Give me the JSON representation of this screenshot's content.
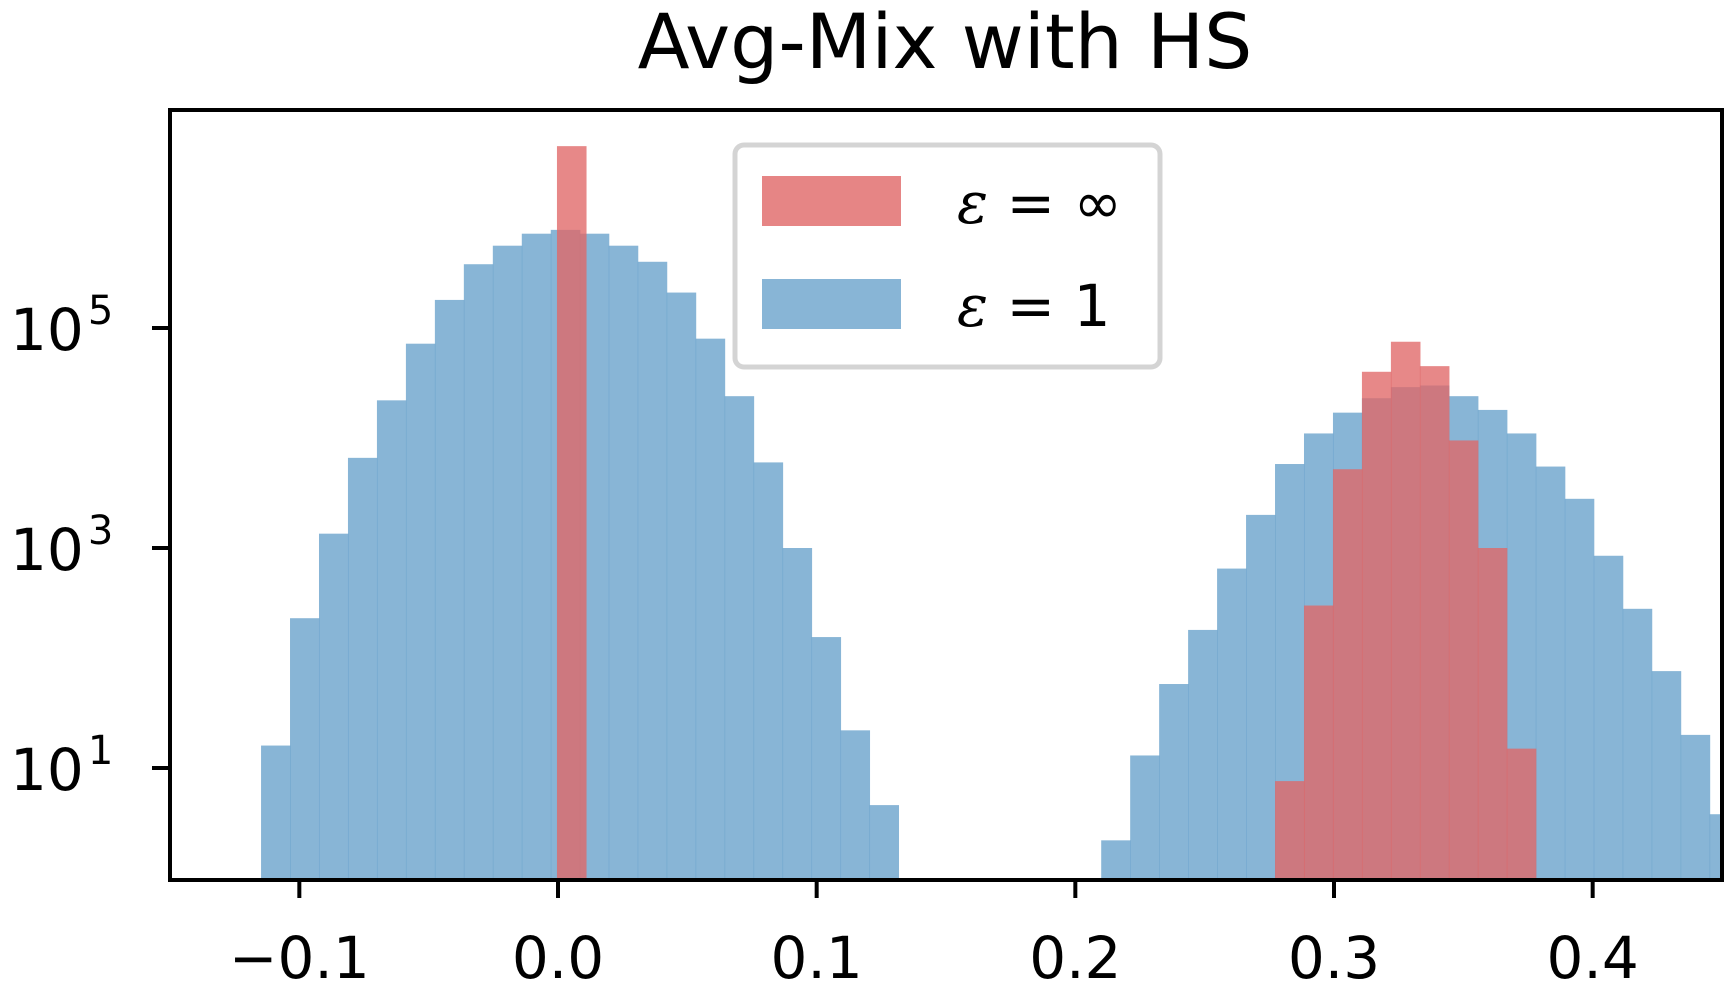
{
  "chart_data": {
    "type": "bar",
    "title": "Avg-Mix with HS",
    "xlabel": "",
    "ylabel": "",
    "xlim": [
      -0.15,
      0.45
    ],
    "ylim_log10": [
      0,
      5
    ],
    "yscale": "log",
    "grid": false,
    "legend_position": "top-center",
    "bin_width": 0.0112,
    "x_ticks": [
      {
        "value": -0.1,
        "label": "−0.1"
      },
      {
        "value": 0.0,
        "label": "0.0"
      },
      {
        "value": 0.1,
        "label": "0.1"
      },
      {
        "value": 0.2,
        "label": "0.2"
      },
      {
        "value": 0.3,
        "label": "0.3"
      },
      {
        "value": 0.4,
        "label": "0.4"
      }
    ],
    "y_ticks": [
      {
        "value": 10,
        "base": "10",
        "exp": "1"
      },
      {
        "value": 1000,
        "base": "10",
        "exp": "3"
      },
      {
        "value": 100000,
        "base": "10",
        "exp": "5"
      }
    ],
    "series": [
      {
        "name_prefix": "ε",
        "name_suffix": " = 1",
        "color": "#6aa2cc",
        "bars": [
          {
            "x0": -0.1148,
            "x1": -0.1036,
            "y": 16
          },
          {
            "x0": -0.1036,
            "x1": -0.0924,
            "y": 230
          },
          {
            "x0": -0.0924,
            "x1": -0.0812,
            "y": 1350
          },
          {
            "x0": -0.0812,
            "x1": -0.07,
            "y": 6600
          },
          {
            "x0": -0.07,
            "x1": -0.0588,
            "y": 22000
          },
          {
            "x0": -0.0588,
            "x1": -0.0476,
            "y": 72000
          },
          {
            "x0": -0.0476,
            "x1": -0.0364,
            "y": 180000
          },
          {
            "x0": -0.0364,
            "x1": -0.0252,
            "y": 380000
          },
          {
            "x0": -0.0252,
            "x1": -0.014,
            "y": 560000
          },
          {
            "x0": -0.014,
            "x1": -0.0028,
            "y": 720000
          },
          {
            "x0": -0.0028,
            "x1": 0.0084,
            "y": 780000
          },
          {
            "x0": 0.0084,
            "x1": 0.0196,
            "y": 720000
          },
          {
            "x0": 0.0196,
            "x1": 0.0308,
            "y": 560000
          },
          {
            "x0": 0.0308,
            "x1": 0.042,
            "y": 400000
          },
          {
            "x0": 0.042,
            "x1": 0.0532,
            "y": 210000
          },
          {
            "x0": 0.0532,
            "x1": 0.0644,
            "y": 80000
          },
          {
            "x0": 0.0644,
            "x1": 0.0756,
            "y": 24000
          },
          {
            "x0": 0.0756,
            "x1": 0.0868,
            "y": 6000
          },
          {
            "x0": 0.0868,
            "x1": 0.098,
            "y": 1000
          },
          {
            "x0": 0.098,
            "x1": 0.1092,
            "y": 155
          },
          {
            "x0": 0.1092,
            "x1": 0.1204,
            "y": 22
          },
          {
            "x0": 0.1204,
            "x1": 0.1316,
            "y": 4.6
          },
          {
            "x0": 0.21,
            "x1": 0.2212,
            "y": 2.2
          },
          {
            "x0": 0.2212,
            "x1": 0.2324,
            "y": 13
          },
          {
            "x0": 0.2324,
            "x1": 0.2436,
            "y": 58
          },
          {
            "x0": 0.2436,
            "x1": 0.2548,
            "y": 180
          },
          {
            "x0": 0.2548,
            "x1": 0.266,
            "y": 650
          },
          {
            "x0": 0.266,
            "x1": 0.2772,
            "y": 2000
          },
          {
            "x0": 0.2772,
            "x1": 0.2884,
            "y": 5800
          },
          {
            "x0": 0.2884,
            "x1": 0.2996,
            "y": 11000
          },
          {
            "x0": 0.2996,
            "x1": 0.3108,
            "y": 17000
          },
          {
            "x0": 0.3108,
            "x1": 0.322,
            "y": 23000
          },
          {
            "x0": 0.322,
            "x1": 0.3332,
            "y": 29000
          },
          {
            "x0": 0.3332,
            "x1": 0.3444,
            "y": 30000
          },
          {
            "x0": 0.3444,
            "x1": 0.3556,
            "y": 24000
          },
          {
            "x0": 0.3556,
            "x1": 0.3668,
            "y": 18000
          },
          {
            "x0": 0.3668,
            "x1": 0.378,
            "y": 11000
          },
          {
            "x0": 0.378,
            "x1": 0.3892,
            "y": 5500
          },
          {
            "x0": 0.3892,
            "x1": 0.4004,
            "y": 2800
          },
          {
            "x0": 0.4004,
            "x1": 0.4116,
            "y": 850
          },
          {
            "x0": 0.4116,
            "x1": 0.4228,
            "y": 280
          },
          {
            "x0": 0.4228,
            "x1": 0.434,
            "y": 76
          },
          {
            "x0": 0.434,
            "x1": 0.4452,
            "y": 20
          },
          {
            "x0": 0.4452,
            "x1": 0.4564,
            "y": 3.8
          }
        ]
      },
      {
        "name_prefix": "ε",
        "name_suffix": " = ∞",
        "color": "#e06666",
        "bars": [
          {
            "x0": -0.0004,
            "x1": 0.0108,
            "y": 4500000
          },
          {
            "x0": 0.2772,
            "x1": 0.2884,
            "y": 7.6
          },
          {
            "x0": 0.2884,
            "x1": 0.2996,
            "y": 300
          },
          {
            "x0": 0.2996,
            "x1": 0.3108,
            "y": 5200
          },
          {
            "x0": 0.3108,
            "x1": 0.322,
            "y": 40000
          },
          {
            "x0": 0.322,
            "x1": 0.3332,
            "y": 75000
          },
          {
            "x0": 0.3332,
            "x1": 0.3444,
            "y": 45000
          },
          {
            "x0": 0.3444,
            "x1": 0.3556,
            "y": 9500
          },
          {
            "x0": 0.3556,
            "x1": 0.3668,
            "y": 1000
          },
          {
            "x0": 0.3668,
            "x1": 0.378,
            "y": 15
          }
        ]
      }
    ]
  }
}
